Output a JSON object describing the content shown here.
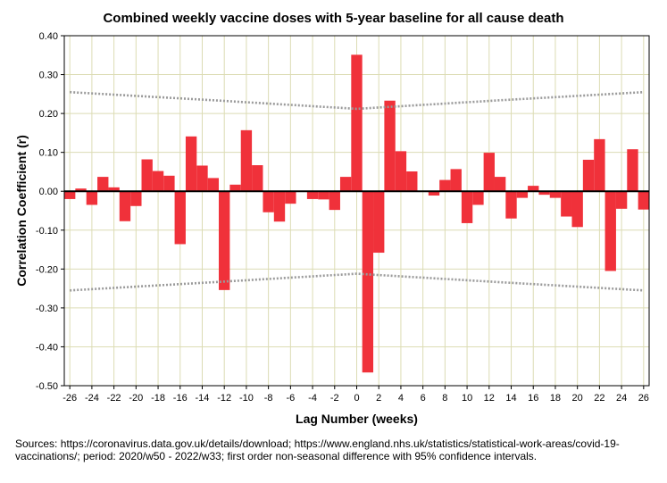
{
  "chart_data": {
    "type": "bar",
    "title": "Combined weekly vaccine doses with 5-year baseline for all cause death",
    "xlabel": "Lag Number (weeks)",
    "ylabel": "Correlation Coefficient (r)",
    "ylim": [
      -0.5,
      0.4
    ],
    "y_ticks": [
      "0.40",
      "0.30",
      "0.20",
      "0.10",
      "0.00",
      "-0.10",
      "-0.20",
      "-0.30",
      "-0.40",
      "-0.50"
    ],
    "x_ticks": [
      "-26",
      "-24",
      "-22",
      "-20",
      "-18",
      "-16",
      "-14",
      "-12",
      "-10",
      "-8",
      "-6",
      "-4",
      "-2",
      "0",
      "2",
      "4",
      "6",
      "8",
      "10",
      "12",
      "14",
      "16",
      "18",
      "20",
      "22",
      "24",
      "26"
    ],
    "bar_color": "#f0313a",
    "grid": true,
    "lags": [
      -26,
      -25,
      -24,
      -23,
      -22,
      -21,
      -20,
      -19,
      -18,
      -17,
      -16,
      -15,
      -14,
      -13,
      -12,
      -11,
      -10,
      -9,
      -8,
      -7,
      -6,
      -5,
      -4,
      -3,
      -2,
      -1,
      0,
      1,
      2,
      3,
      4,
      5,
      6,
      7,
      8,
      9,
      10,
      11,
      12,
      13,
      14,
      15,
      16,
      17,
      18,
      19,
      20,
      21,
      22,
      23,
      24,
      25,
      26
    ],
    "values": [
      -0.02,
      0.007,
      -0.035,
      0.037,
      0.01,
      -0.077,
      -0.038,
      0.082,
      0.052,
      0.04,
      -0.136,
      0.141,
      0.066,
      0.034,
      -0.254,
      0.017,
      0.157,
      0.067,
      -0.054,
      -0.078,
      -0.032,
      0.0,
      -0.02,
      -0.021,
      -0.048,
      0.037,
      0.351,
      -0.466,
      -0.158,
      0.233,
      0.103,
      0.051,
      0.0,
      -0.011,
      0.029,
      0.057,
      -0.082,
      -0.035,
      0.099,
      0.037,
      -0.07,
      -0.017,
      0.014,
      -0.009,
      -0.017,
      -0.065,
      -0.092,
      0.081,
      0.134,
      -0.205,
      -0.045,
      0.108,
      -0.047
    ],
    "confidence_limit": {
      "label": "95% confidence",
      "lags": [
        -26,
        -13,
        0,
        13,
        26
      ],
      "upper": [
        0.255,
        0.234,
        0.212,
        0.234,
        0.255
      ],
      "lower": [
        -0.255,
        -0.234,
        -0.212,
        -0.234,
        -0.255
      ]
    }
  },
  "footnote": "Sources: https://coronavirus.data.gov.uk/details/download; https://www.england.nhs.uk/statistics/statistical-work-areas/covid-19-vaccinations/; period: 2020/w50 - 2022/w33; first order non-seasonal difference with 95% confidence intervals."
}
